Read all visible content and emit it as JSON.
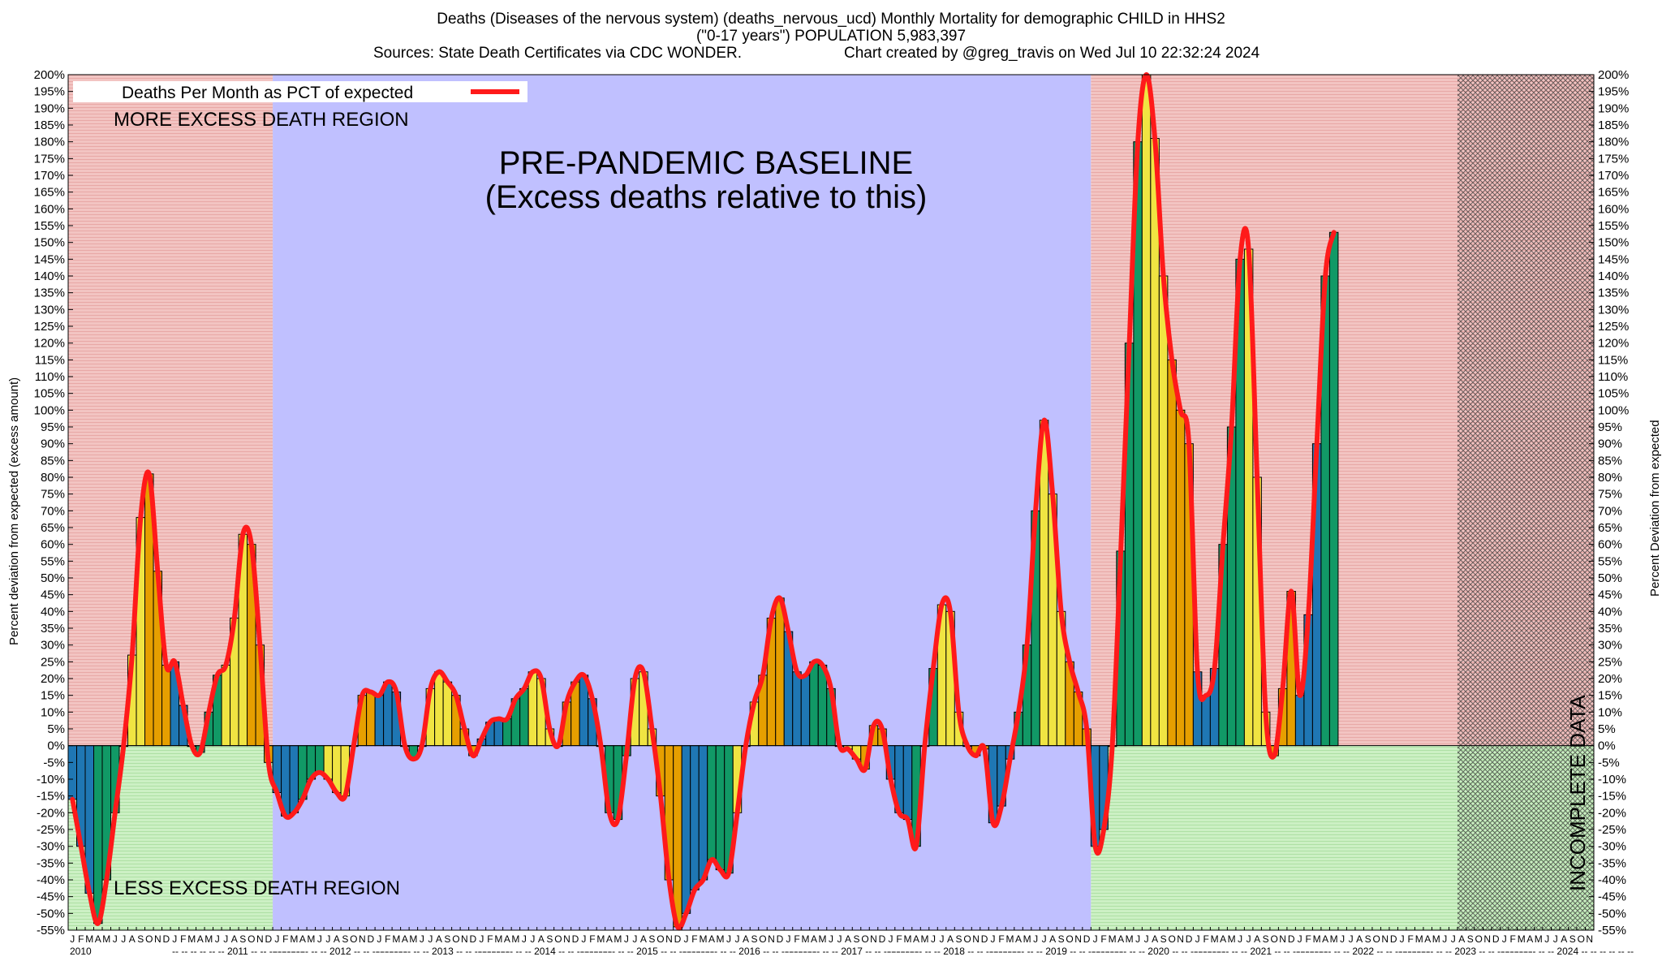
{
  "title": {
    "line1": "Deaths (Diseases of the nervous system) (deaths_nervous_ucd) Monthly Mortality for demographic CHILD in HHS2",
    "line2": "(\"0-17 years\") POPULATION 5,983,397",
    "line3a": "Sources: State Death Certificates via CDC WONDER.",
    "line3b": "Chart created by @greg_travis on Wed Jul 10 22:32:24 2024"
  },
  "legend": {
    "label": "Deaths Per Month as PCT of expected",
    "line_color": "#ff1a1a"
  },
  "annotations": {
    "more": "MORE EXCESS DEATH REGION",
    "less": "LESS EXCESS DEATH REGION",
    "baseline1": "PRE-PANDEMIC BASELINE",
    "baseline2": "(Excess deaths relative to this)",
    "incomplete": "INCOMPLETE DATA"
  },
  "colors": {
    "excess_region": "#f2c4c2",
    "deficit_region": "#ccf0c4",
    "baseline_region": "#c0c0ff",
    "bar_palette": [
      "#1f77b4",
      "#119966",
      "#f0e442",
      "#e69f00"
    ],
    "line": "#ff1a1a"
  },
  "chart_data": {
    "type": "bar",
    "title": "Deaths (Diseases of the nervous system) (deaths_nervous_ucd) Monthly Mortality for demographic CHILD in HHS2",
    "ylabel": "Percent deviation from expected (excess amount)",
    "ylabel_right": "Percent Deviation from expected",
    "ylim": [
      -55,
      200
    ],
    "ytick_step": 5,
    "start": "2010-01",
    "month_labels": [
      "J",
      "F",
      "M",
      "A",
      "M",
      "J",
      "J",
      "A",
      "S",
      "O",
      "N",
      "D"
    ],
    "years": [
      "2010",
      "2011",
      "2012",
      "2013",
      "2014",
      "2015",
      "2016",
      "2017",
      "2018",
      "2019",
      "2020",
      "2021",
      "2022",
      "2023",
      "2024"
    ],
    "baseline_period": [
      "2012-01",
      "2019-12"
    ],
    "incomplete_from": "2023-08",
    "series": [
      {
        "name": "Deaths Per Month as PCT of expected",
        "values": [
          -16,
          -30,
          -44,
          -53,
          -40,
          -20,
          0,
          27,
          68,
          81,
          52,
          24,
          25,
          12,
          0,
          -2,
          10,
          21,
          24,
          38,
          63,
          60,
          30,
          -5,
          -14,
          -21,
          -20,
          -16,
          -10,
          -8,
          -10,
          -14,
          -15,
          0,
          15,
          16,
          15,
          19,
          16,
          0,
          -4,
          0,
          17,
          22,
          19,
          15,
          5,
          -3,
          2,
          7,
          8,
          8,
          14,
          17,
          22,
          20,
          5,
          0,
          13,
          19,
          21,
          14,
          0,
          -20,
          -22,
          -3,
          20,
          22,
          5,
          -15,
          -40,
          -54,
          -50,
          -43,
          -40,
          -34,
          -37,
          -38,
          -20,
          0,
          13,
          21,
          38,
          44,
          34,
          22,
          21,
          25,
          24,
          17,
          0,
          -1,
          -4,
          -7,
          6,
          5,
          -10,
          -20,
          -22,
          -30,
          0,
          23,
          42,
          40,
          10,
          0,
          -3,
          -1,
          -23,
          -18,
          -4,
          10,
          30,
          70,
          97,
          75,
          40,
          25,
          16,
          5,
          -30,
          -25,
          0,
          58,
          120,
          180,
          200,
          181,
          140,
          115,
          100,
          90,
          22,
          15,
          23,
          60,
          95,
          145,
          148,
          80,
          10,
          -3,
          17,
          46,
          15,
          39,
          90,
          140,
          153
        ]
      }
    ]
  }
}
